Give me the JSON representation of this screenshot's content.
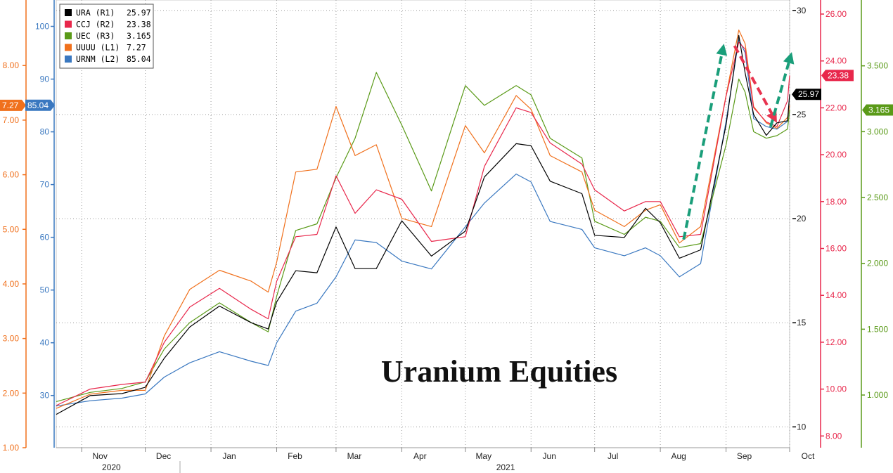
{
  "chart_data": {
    "type": "line",
    "title": "Uranium Equities",
    "x_months": [
      {
        "label": "Nov",
        "date": "2020-11-01"
      },
      {
        "label": "Dec",
        "date": "2020-12-01"
      },
      {
        "label": "Jan",
        "date": "2021-01-01"
      },
      {
        "label": "Feb",
        "date": "2021-02-01"
      },
      {
        "label": "Mar",
        "date": "2021-03-01"
      },
      {
        "label": "Apr",
        "date": "2021-04-01"
      },
      {
        "label": "May",
        "date": "2021-05-01"
      },
      {
        "label": "Jun",
        "date": "2021-06-01"
      },
      {
        "label": "Jul",
        "date": "2021-07-01"
      },
      {
        "label": "Aug",
        "date": "2021-08-01"
      },
      {
        "label": "Sep",
        "date": "2021-09-01"
      },
      {
        "label": "Oct",
        "date": "2021-10-01"
      }
    ],
    "x_years": [
      {
        "label": "2020",
        "date": "2020-11-15"
      },
      {
        "label": "2021",
        "date": "2021-05-20"
      }
    ],
    "x_range": [
      "2020-10-20",
      "2021-10-01"
    ],
    "axes": {
      "L1": {
        "color": "#f0701c",
        "range": [
          1.0,
          9.2
        ],
        "ticks": [
          "1.00",
          "2.00",
          "3.00",
          "4.00",
          "5.00",
          "6.00",
          "7.00",
          "8.00"
        ]
      },
      "L2": {
        "color": "#3a78c0",
        "range": [
          20.1,
          105
        ],
        "ticks": [
          "30",
          "40",
          "50",
          "60",
          "70",
          "80",
          "90",
          "100"
        ]
      },
      "R1": {
        "color": "#000000",
        "range": [
          9.0,
          30.5
        ],
        "ticks": [
          "10",
          "15",
          "20",
          "25",
          "30"
        ]
      },
      "R2": {
        "color": "#e8274b",
        "range": [
          7.5,
          26.6
        ],
        "ticks": [
          "8.00",
          "10.00",
          "12.00",
          "14.00",
          "16.00",
          "18.00",
          "20.00",
          "22.00",
          "24.00",
          "26.00"
        ]
      },
      "R3": {
        "color": "#5a9a18",
        "range": [
          0.6,
          4.0
        ],
        "ticks": [
          "1.000",
          "1.500",
          "2.000",
          "2.500",
          "3.000",
          "3.500"
        ]
      }
    },
    "series": [
      {
        "name": "URA",
        "axis": "R1",
        "legend": "URA (R1)",
        "last": "25.97",
        "color": "#000000",
        "points": [
          [
            "2020-10-20",
            10.6
          ],
          [
            "2020-11-05",
            11.5
          ],
          [
            "2020-11-20",
            11.6
          ],
          [
            "2020-12-01",
            11.9
          ],
          [
            "2020-12-10",
            13.3
          ],
          [
            "2020-12-22",
            14.8
          ],
          [
            "2021-01-05",
            15.8
          ],
          [
            "2021-01-20",
            15.0
          ],
          [
            "2021-01-28",
            14.7
          ],
          [
            "2021-02-01",
            16.0
          ],
          [
            "2021-02-10",
            17.5
          ],
          [
            "2021-02-20",
            17.4
          ],
          [
            "2021-03-01",
            19.6
          ],
          [
            "2021-03-10",
            17.6
          ],
          [
            "2021-03-20",
            17.6
          ],
          [
            "2021-04-01",
            19.9
          ],
          [
            "2021-04-15",
            18.2
          ],
          [
            "2021-05-01",
            19.4
          ],
          [
            "2021-05-10",
            22.0
          ],
          [
            "2021-05-25",
            23.6
          ],
          [
            "2021-06-01",
            23.5
          ],
          [
            "2021-06-10",
            21.8
          ],
          [
            "2021-06-25",
            21.2
          ],
          [
            "2021-07-01",
            19.2
          ],
          [
            "2021-07-15",
            19.1
          ],
          [
            "2021-07-25",
            20.5
          ],
          [
            "2021-08-01",
            19.8
          ],
          [
            "2021-08-10",
            18.1
          ],
          [
            "2021-08-20",
            18.5
          ],
          [
            "2021-09-01",
            24.5
          ],
          [
            "2021-09-07",
            28.8
          ],
          [
            "2021-09-10",
            27.0
          ],
          [
            "2021-09-14",
            25.0
          ],
          [
            "2021-09-20",
            24.0
          ],
          [
            "2021-09-25",
            24.6
          ],
          [
            "2021-09-30",
            24.7
          ],
          [
            "2021-10-01",
            25.97
          ]
        ]
      },
      {
        "name": "CCJ",
        "axis": "R2",
        "legend": "CCJ (R2)",
        "last": "23.38",
        "color": "#e8274b",
        "points": [
          [
            "2020-10-20",
            9.3
          ],
          [
            "2020-11-05",
            10.0
          ],
          [
            "2020-11-20",
            10.2
          ],
          [
            "2020-12-01",
            10.3
          ],
          [
            "2020-12-10",
            12.0
          ],
          [
            "2020-12-22",
            13.5
          ],
          [
            "2021-01-05",
            14.3
          ],
          [
            "2021-01-20",
            13.4
          ],
          [
            "2021-01-28",
            13.0
          ],
          [
            "2021-02-01",
            14.6
          ],
          [
            "2021-02-10",
            16.5
          ],
          [
            "2021-02-20",
            16.6
          ],
          [
            "2021-03-01",
            19.1
          ],
          [
            "2021-03-10",
            17.5
          ],
          [
            "2021-03-20",
            18.5
          ],
          [
            "2021-04-01",
            18.1
          ],
          [
            "2021-04-15",
            16.3
          ],
          [
            "2021-05-01",
            16.5
          ],
          [
            "2021-05-10",
            19.5
          ],
          [
            "2021-05-25",
            22.0
          ],
          [
            "2021-06-01",
            21.8
          ],
          [
            "2021-06-10",
            20.5
          ],
          [
            "2021-06-25",
            19.6
          ],
          [
            "2021-07-01",
            18.5
          ],
          [
            "2021-07-15",
            17.6
          ],
          [
            "2021-07-25",
            18.0
          ],
          [
            "2021-08-01",
            18.0
          ],
          [
            "2021-08-10",
            16.5
          ],
          [
            "2021-08-20",
            16.6
          ],
          [
            "2021-09-01",
            22.5
          ],
          [
            "2021-09-07",
            24.8
          ],
          [
            "2021-09-10",
            24.5
          ],
          [
            "2021-09-14",
            22.0
          ],
          [
            "2021-09-20",
            21.4
          ],
          [
            "2021-09-25",
            21.2
          ],
          [
            "2021-09-30",
            22.3
          ],
          [
            "2021-10-01",
            23.38
          ]
        ]
      },
      {
        "name": "UEC",
        "axis": "R3",
        "legend": "UEC (R3)",
        "last": "3.165",
        "color": "#5a9a18",
        "points": [
          [
            "2020-10-20",
            0.95
          ],
          [
            "2020-11-05",
            1.02
          ],
          [
            "2020-11-20",
            1.05
          ],
          [
            "2020-12-01",
            1.1
          ],
          [
            "2020-12-10",
            1.35
          ],
          [
            "2020-12-22",
            1.55
          ],
          [
            "2021-01-05",
            1.7
          ],
          [
            "2021-01-20",
            1.55
          ],
          [
            "2021-01-28",
            1.48
          ],
          [
            "2021-02-01",
            1.75
          ],
          [
            "2021-02-10",
            2.25
          ],
          [
            "2021-02-20",
            2.3
          ],
          [
            "2021-03-01",
            2.65
          ],
          [
            "2021-03-10",
            2.95
          ],
          [
            "2021-03-20",
            3.45
          ],
          [
            "2021-04-01",
            3.05
          ],
          [
            "2021-04-15",
            2.55
          ],
          [
            "2021-05-01",
            3.35
          ],
          [
            "2021-05-10",
            3.2
          ],
          [
            "2021-05-25",
            3.35
          ],
          [
            "2021-06-01",
            3.28
          ],
          [
            "2021-06-10",
            2.95
          ],
          [
            "2021-06-25",
            2.8
          ],
          [
            "2021-07-01",
            2.32
          ],
          [
            "2021-07-15",
            2.22
          ],
          [
            "2021-07-25",
            2.35
          ],
          [
            "2021-08-01",
            2.32
          ],
          [
            "2021-08-10",
            2.12
          ],
          [
            "2021-08-20",
            2.15
          ],
          [
            "2021-09-01",
            2.9
          ],
          [
            "2021-09-07",
            3.4
          ],
          [
            "2021-09-10",
            3.3
          ],
          [
            "2021-09-14",
            3.0
          ],
          [
            "2021-09-20",
            2.95
          ],
          [
            "2021-09-25",
            2.97
          ],
          [
            "2021-09-30",
            3.02
          ],
          [
            "2021-10-01",
            3.165
          ]
        ]
      },
      {
        "name": "UUUU",
        "axis": "L1",
        "legend": "UUUU (L1)",
        "last": "7.27",
        "color": "#f0701c",
        "points": [
          [
            "2020-10-20",
            1.72
          ],
          [
            "2020-11-05",
            1.98
          ],
          [
            "2020-11-20",
            2.05
          ],
          [
            "2020-12-01",
            2.05
          ],
          [
            "2020-12-10",
            3.05
          ],
          [
            "2020-12-22",
            3.9
          ],
          [
            "2021-01-05",
            4.25
          ],
          [
            "2021-01-20",
            4.05
          ],
          [
            "2021-01-28",
            3.85
          ],
          [
            "2021-02-01",
            4.4
          ],
          [
            "2021-02-10",
            6.05
          ],
          [
            "2021-02-20",
            6.1
          ],
          [
            "2021-03-01",
            7.25
          ],
          [
            "2021-03-10",
            6.35
          ],
          [
            "2021-03-20",
            6.55
          ],
          [
            "2021-04-01",
            5.2
          ],
          [
            "2021-04-15",
            5.05
          ],
          [
            "2021-05-01",
            6.9
          ],
          [
            "2021-05-10",
            6.4
          ],
          [
            "2021-05-25",
            7.45
          ],
          [
            "2021-06-01",
            7.2
          ],
          [
            "2021-06-10",
            6.35
          ],
          [
            "2021-06-25",
            6.05
          ],
          [
            "2021-07-01",
            5.35
          ],
          [
            "2021-07-15",
            5.05
          ],
          [
            "2021-07-25",
            5.35
          ],
          [
            "2021-08-01",
            5.45
          ],
          [
            "2021-08-10",
            4.75
          ],
          [
            "2021-08-20",
            5.05
          ],
          [
            "2021-09-01",
            7.45
          ],
          [
            "2021-09-07",
            8.65
          ],
          [
            "2021-09-10",
            8.4
          ],
          [
            "2021-09-14",
            7.25
          ],
          [
            "2021-09-20",
            6.95
          ],
          [
            "2021-09-25",
            6.85
          ],
          [
            "2021-09-30",
            7.05
          ],
          [
            "2021-10-01",
            7.27
          ]
        ]
      },
      {
        "name": "URNM",
        "axis": "L2",
        "legend": "URNM (L2)",
        "last": "85.04",
        "color": "#3a78c0",
        "points": [
          [
            "2020-10-20",
            28.0
          ],
          [
            "2020-11-05",
            29.0
          ],
          [
            "2020-11-20",
            29.5
          ],
          [
            "2020-12-01",
            30.3
          ],
          [
            "2020-12-10",
            33.5
          ],
          [
            "2020-12-22",
            36.2
          ],
          [
            "2021-01-05",
            38.3
          ],
          [
            "2021-01-20",
            36.5
          ],
          [
            "2021-01-28",
            35.7
          ],
          [
            "2021-02-01",
            40.0
          ],
          [
            "2021-02-10",
            46.0
          ],
          [
            "2021-02-20",
            47.5
          ],
          [
            "2021-03-01",
            52.5
          ],
          [
            "2021-03-10",
            59.5
          ],
          [
            "2021-03-20",
            59.0
          ],
          [
            "2021-04-01",
            55.5
          ],
          [
            "2021-04-15",
            54.0
          ],
          [
            "2021-05-01",
            62.0
          ],
          [
            "2021-05-10",
            66.5
          ],
          [
            "2021-05-25",
            72.0
          ],
          [
            "2021-06-01",
            70.5
          ],
          [
            "2021-06-10",
            63.0
          ],
          [
            "2021-06-25",
            61.5
          ],
          [
            "2021-07-01",
            58.0
          ],
          [
            "2021-07-15",
            56.5
          ],
          [
            "2021-07-25",
            58.0
          ],
          [
            "2021-08-01",
            56.5
          ],
          [
            "2021-08-10",
            52.5
          ],
          [
            "2021-08-20",
            55.0
          ],
          [
            "2021-09-01",
            82.0
          ],
          [
            "2021-09-07",
            97.5
          ],
          [
            "2021-09-10",
            95.0
          ],
          [
            "2021-09-14",
            82.5
          ],
          [
            "2021-09-20",
            81.0
          ],
          [
            "2021-09-25",
            80.5
          ],
          [
            "2021-09-30",
            82.0
          ],
          [
            "2021-10-01",
            85.04
          ]
        ]
      }
    ],
    "annotations": {
      "arrows": [
        {
          "color": "#1a9e7a",
          "from": {
            "date": "2021-08-12",
            "axis": "R1",
            "y": 19.0
          },
          "to": {
            "date": "2021-08-31",
            "axis": "R1",
            "y": 28.4
          }
        },
        {
          "color": "#e8334f",
          "from": {
            "date": "2021-09-05",
            "axis": "R1",
            "y": 28.3
          },
          "to": {
            "date": "2021-09-25",
            "axis": "R1",
            "y": 24.6
          }
        },
        {
          "color": "#1a9e7a",
          "from": {
            "date": "2021-09-22",
            "axis": "R1",
            "y": 24.4
          },
          "to": {
            "date": "2021-10-02",
            "axis": "R1",
            "y": 28.0
          }
        }
      ]
    },
    "grid": true,
    "legend_position": "top-left"
  }
}
